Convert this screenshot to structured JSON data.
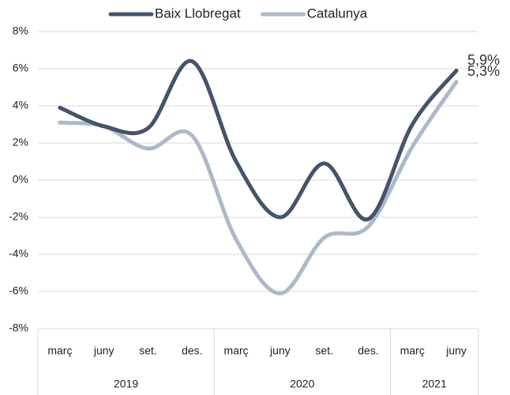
{
  "chart_data": {
    "type": "line",
    "categories": [
      "març",
      "juny",
      "set.",
      "des.",
      "març",
      "juny",
      "set.",
      "des.",
      "març",
      "juny"
    ],
    "groups": [
      {
        "name": "2019",
        "count": 4
      },
      {
        "name": "2020",
        "count": 4
      },
      {
        "name": "2021",
        "count": 2
      }
    ],
    "series": [
      {
        "name": "Baix Llobregat",
        "color": "#44546a",
        "values": [
          3.9,
          2.9,
          2.8,
          6.4,
          1.0,
          -2.0,
          0.9,
          -2.1,
          3.0,
          5.9
        ],
        "value_labels": [
          null,
          null,
          null,
          null,
          null,
          null,
          null,
          null,
          null,
          "5,9%"
        ]
      },
      {
        "name": "Catalunya",
        "color": "#adb9ca",
        "values": [
          3.1,
          2.9,
          1.7,
          2.4,
          -3.2,
          -6.1,
          -3.1,
          -2.5,
          1.8,
          5.3
        ],
        "value_labels": [
          null,
          null,
          null,
          null,
          null,
          null,
          null,
          null,
          null,
          "5,3%"
        ]
      }
    ],
    "ylim": [
      -8,
      8
    ],
    "yticks": [
      {
        "value": -8,
        "label": "-8%"
      },
      {
        "value": -6,
        "label": "-6%"
      },
      {
        "value": -4,
        "label": "-4%"
      },
      {
        "value": -2,
        "label": "-2%"
      },
      {
        "value": 0,
        "label": "0%"
      },
      {
        "value": 2,
        "label": "2%"
      },
      {
        "value": 4,
        "label": "4%"
      },
      {
        "value": 6,
        "label": "6%"
      },
      {
        "value": 8,
        "label": "8%"
      }
    ],
    "grid": true,
    "legend": "top"
  }
}
